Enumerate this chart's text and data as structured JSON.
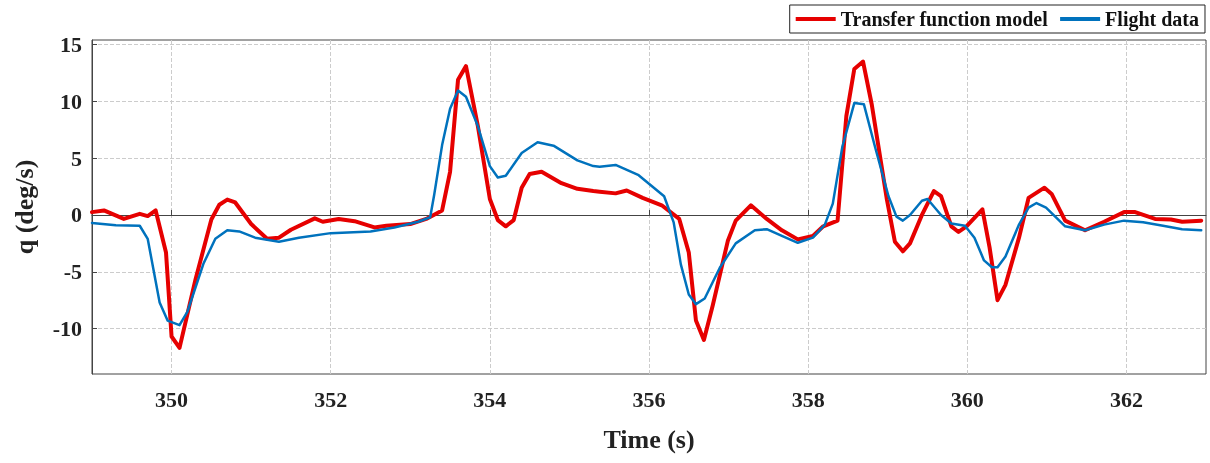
{
  "chart_data": {
    "type": "line",
    "xlabel": "Time (s)",
    "ylabel": "q (deg/s)",
    "xlim": [
      349,
      363
    ],
    "xticks": [
      350,
      352,
      354,
      356,
      358,
      360,
      362
    ],
    "ylim": [
      -14,
      15.4
    ],
    "yticks": [
      -10,
      -5,
      0,
      5,
      10,
      15
    ],
    "grid": true,
    "legend": "top right",
    "marker": "none",
    "line_style": "solid",
    "series": [
      {
        "name": "Transfer function model",
        "color": "#e60000",
        "x": [
          349.0,
          349.15,
          349.4,
          349.6,
          349.7,
          349.8,
          349.93,
          350.0,
          350.1,
          350.3,
          350.5,
          350.6,
          350.7,
          350.8,
          351.0,
          351.2,
          351.35,
          351.5,
          351.8,
          351.9,
          352.1,
          352.3,
          352.55,
          352.7,
          353.0,
          353.2,
          353.4,
          353.5,
          353.6,
          353.7,
          353.85,
          354.0,
          354.1,
          354.2,
          354.3,
          354.4,
          354.5,
          354.65,
          354.9,
          355.1,
          355.3,
          355.38,
          355.58,
          355.72,
          355.92,
          356.16,
          356.38,
          356.5,
          356.59,
          356.69,
          356.8,
          356.99,
          357.09,
          357.28,
          357.48,
          357.67,
          357.87,
          358.06,
          358.19,
          358.37,
          358.48,
          358.58,
          358.69,
          358.8,
          358.99,
          359.09,
          359.19,
          359.28,
          359.43,
          359.58,
          359.67,
          359.8,
          359.89,
          359.99,
          360.19,
          360.28,
          360.38,
          360.48,
          360.65,
          360.77,
          360.97,
          361.06,
          361.23,
          361.48,
          361.72,
          361.97,
          362.11,
          362.36,
          362.56,
          362.7,
          362.94
        ],
        "values": [
          0.25,
          0.4,
          -0.35,
          0.1,
          -0.1,
          0.4,
          -3.3,
          -10.7,
          -11.7,
          -5.7,
          -0.4,
          0.9,
          1.35,
          1.1,
          -0.8,
          -2.1,
          -2.0,
          -1.3,
          -0.3,
          -0.6,
          -0.35,
          -0.55,
          -1.1,
          -0.95,
          -0.8,
          -0.35,
          0.4,
          3.8,
          11.9,
          13.1,
          7.8,
          1.4,
          -0.45,
          -1.0,
          -0.45,
          2.4,
          3.6,
          3.8,
          2.8,
          2.3,
          2.1,
          2.05,
          1.9,
          2.15,
          1.5,
          0.85,
          -0.35,
          -3.3,
          -9.3,
          -11.0,
          -8.0,
          -2.3,
          -0.5,
          0.85,
          -0.35,
          -1.35,
          -2.15,
          -1.85,
          -1.0,
          -0.5,
          8.7,
          12.85,
          13.5,
          9.7,
          1.35,
          -2.35,
          -3.2,
          -2.5,
          0.0,
          2.1,
          1.65,
          -1.0,
          -1.5,
          -1.0,
          0.5,
          -2.85,
          -7.5,
          -6.15,
          -2.0,
          1.5,
          2.4,
          1.85,
          -0.5,
          -1.35,
          -0.6,
          0.25,
          0.25,
          -0.35,
          -0.4,
          -0.6,
          -0.5
        ]
      },
      {
        "name": "Flight data",
        "color": "#0072bd",
        "x": [
          349.0,
          349.3,
          349.6,
          349.7,
          349.85,
          349.95,
          350.1,
          350.2,
          350.4,
          350.55,
          350.7,
          350.85,
          351.05,
          351.35,
          351.6,
          352.0,
          352.5,
          352.8,
          353.1,
          353.25,
          353.3,
          353.4,
          353.5,
          353.6,
          353.7,
          353.85,
          354.0,
          354.1,
          354.2,
          354.4,
          354.6,
          354.8,
          355.1,
          355.3,
          355.38,
          355.58,
          355.87,
          356.19,
          356.31,
          356.4,
          356.5,
          356.59,
          356.7,
          356.89,
          357.09,
          357.33,
          357.48,
          357.67,
          357.87,
          358.06,
          358.21,
          358.31,
          358.43,
          358.58,
          358.7,
          358.84,
          359.01,
          359.11,
          359.19,
          359.28,
          359.43,
          359.5,
          359.67,
          359.8,
          359.97,
          360.09,
          360.21,
          360.31,
          360.38,
          360.48,
          360.65,
          360.77,
          360.87,
          360.99,
          361.23,
          361.48,
          361.72,
          361.97,
          362.21,
          362.46,
          362.7,
          362.94
        ],
        "values": [
          -0.7,
          -0.9,
          -0.95,
          -2.1,
          -7.7,
          -9.3,
          -9.7,
          -8.5,
          -4.3,
          -2.1,
          -1.35,
          -1.45,
          -2.0,
          -2.35,
          -2.0,
          -1.6,
          -1.45,
          -1.1,
          -0.6,
          -0.2,
          1.75,
          6.15,
          9.35,
          10.95,
          10.4,
          7.8,
          4.3,
          3.3,
          3.45,
          5.45,
          6.4,
          6.1,
          4.8,
          4.3,
          4.25,
          4.4,
          3.5,
          1.65,
          -0.65,
          -4.35,
          -7.0,
          -7.85,
          -7.35,
          -4.65,
          -2.5,
          -1.35,
          -1.25,
          -1.85,
          -2.45,
          -2.0,
          -0.85,
          1.0,
          6.0,
          9.85,
          9.75,
          6.0,
          1.65,
          -0.15,
          -0.5,
          0.0,
          1.25,
          1.4,
          0.0,
          -0.75,
          -0.95,
          -2.0,
          -4.0,
          -4.6,
          -4.6,
          -3.65,
          -0.85,
          0.65,
          1.05,
          0.65,
          -1.0,
          -1.35,
          -0.85,
          -0.5,
          -0.65,
          -0.95,
          -1.25,
          -1.35
        ]
      }
    ]
  }
}
